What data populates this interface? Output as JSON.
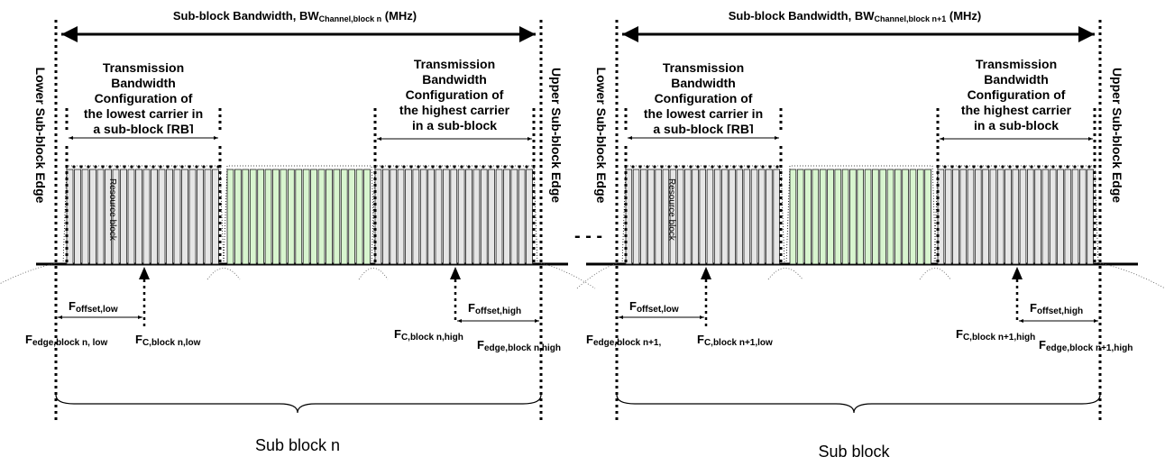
{
  "dots_separator": "- - -",
  "blocks": [
    {
      "bw_prefix": "Sub-block Bandwidth, BW",
      "bw_sub": "Channel,block n",
      "bw_suffix": "(MHz)",
      "lower_edge": "Lower Sub-block Edge",
      "upper_edge": "Upper Sub-block Edge",
      "tb_low": [
        "Transmission",
        "Bandwidth",
        "Configuration of",
        "the lowest carrier in",
        "a sub-block  [RB]"
      ],
      "tb_high": [
        "Transmission",
        "Bandwidth",
        "Configuration of",
        "the highest carrier",
        "in a sub-block"
      ],
      "resource_block": "Resource block",
      "foffset_low": {
        "main": "F",
        "sub": "offset,low"
      },
      "foffset_high": {
        "main": "F",
        "sub": "offset,high"
      },
      "fedge_low": {
        "main": "F",
        "sub": "edge,block n, low"
      },
      "fc_low": {
        "main": "F",
        "sub": "C,block n,low"
      },
      "fc_high": {
        "main": "F",
        "sub": "C,block n,high"
      },
      "fedge_high": {
        "main": "F",
        "sub": "edge,block n,high"
      },
      "caption": "Sub block n"
    },
    {
      "bw_prefix": "Sub-block Bandwidth, BW",
      "bw_sub": "Channel,block n+1",
      "bw_suffix": "(MHz)",
      "lower_edge": "Lower Sub-block Edge",
      "upper_edge": "Upper Sub-block Edge",
      "tb_low": [
        "Transmission",
        "Bandwidth",
        "Configuration of",
        "the lowest carrier in",
        "a sub-block  [RB]"
      ],
      "tb_high": [
        "Transmission",
        "Bandwidth",
        "Configuration of",
        "the highest carrier",
        "in a sub-block"
      ],
      "resource_block": "Resource block",
      "foffset_low": {
        "main": "F",
        "sub": "offset,low"
      },
      "foffset_high": {
        "main": "F",
        "sub": "offset,high"
      },
      "fedge_low": {
        "main": "F",
        "sub": "edge,block n+1,"
      },
      "fc_low": {
        "main": "F",
        "sub": "C,block n+1,low"
      },
      "fc_high": {
        "main": "F",
        "sub": "C,block n+1,high"
      },
      "fedge_high": {
        "main": "F",
        "sub": "edge,block n+1,high"
      },
      "caption": "Sub block"
    }
  ]
}
